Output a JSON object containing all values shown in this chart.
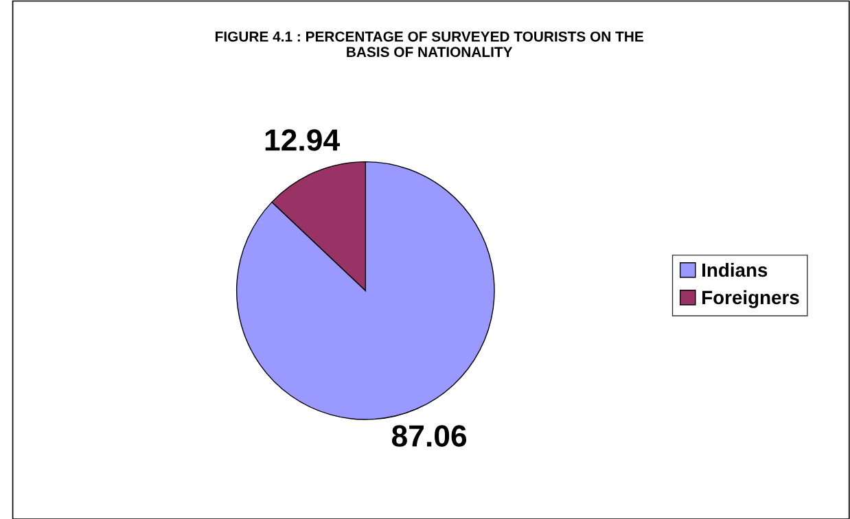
{
  "chart_data": {
    "type": "pie",
    "title": "FIGURE 4.1 : PERCENTAGE OF SURVEYED TOURISTS ON THE\nBASIS OF NATIONALITY",
    "categories": [
      "Indians",
      "Foreigners"
    ],
    "values": [
      87.06,
      12.94
    ],
    "colors": [
      "#9999ff",
      "#993366"
    ],
    "data_labels": true,
    "legend": "right"
  }
}
